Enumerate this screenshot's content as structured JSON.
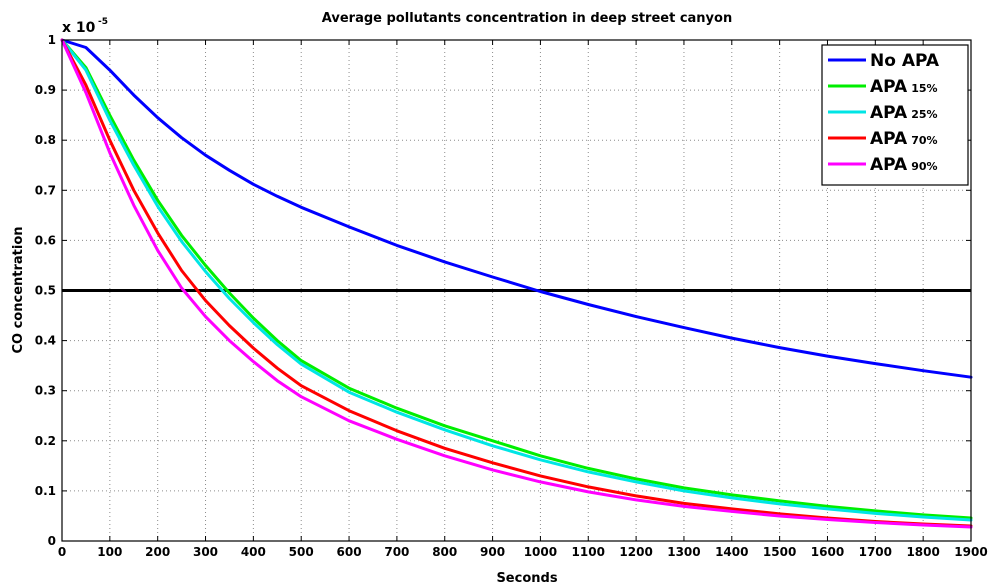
{
  "chart_data": {
    "type": "line",
    "title": "Average pollutants concentration in deep street canyon",
    "xlabel": "Seconds",
    "ylabel": "CO concentration",
    "y_multiplier": "x 10",
    "y_exponent": "-5",
    "xlim": [
      0,
      1900
    ],
    "ylim": [
      0,
      1
    ],
    "xticks": [
      0,
      100,
      200,
      300,
      400,
      500,
      600,
      700,
      800,
      900,
      1000,
      1100,
      1200,
      1300,
      1400,
      1500,
      1600,
      1700,
      1800,
      1900
    ],
    "yticks": [
      0,
      0.1,
      0.2,
      0.3,
      0.4,
      0.5,
      0.6,
      0.7,
      0.8,
      0.9,
      1
    ],
    "ytick_labels": [
      "0",
      "0.1",
      "0.2",
      "0.3",
      "0.4",
      "0.5",
      "0.6",
      "0.7",
      "0.8",
      "0.9",
      "1"
    ],
    "grid": true,
    "legend_position": "top-right",
    "x": [
      0,
      50,
      100,
      150,
      200,
      250,
      300,
      350,
      400,
      450,
      500,
      600,
      700,
      800,
      900,
      1000,
      1100,
      1200,
      1300,
      1400,
      1500,
      1600,
      1700,
      1800,
      1900
    ],
    "series": [
      {
        "name": "No APA",
        "legend_main": "No APA",
        "legend_sub": "",
        "color": "#0000ff",
        "values": [
          1.0,
          0.985,
          0.94,
          0.89,
          0.845,
          0.805,
          0.77,
          0.74,
          0.712,
          0.688,
          0.666,
          0.627,
          0.59,
          0.557,
          0.527,
          0.498,
          0.472,
          0.448,
          0.426,
          0.405,
          0.386,
          0.369,
          0.354,
          0.34,
          0.327
        ]
      },
      {
        "name": "APA 15%",
        "legend_main": "APA",
        "legend_sub": "15%",
        "color": "#00ee00",
        "values": [
          1.0,
          0.945,
          0.85,
          0.76,
          0.68,
          0.61,
          0.55,
          0.495,
          0.445,
          0.4,
          0.36,
          0.305,
          0.265,
          0.23,
          0.2,
          0.17,
          0.145,
          0.124,
          0.106,
          0.092,
          0.08,
          0.069,
          0.06,
          0.052,
          0.046
        ]
      },
      {
        "name": "APA 25%",
        "legend_main": "APA",
        "legend_sub": "25%",
        "color": "#00e5e5",
        "values": [
          1.0,
          0.94,
          0.84,
          0.75,
          0.668,
          0.598,
          0.538,
          0.484,
          0.436,
          0.392,
          0.353,
          0.297,
          0.257,
          0.222,
          0.19,
          0.162,
          0.138,
          0.118,
          0.1,
          0.086,
          0.074,
          0.064,
          0.055,
          0.048,
          0.042
        ]
      },
      {
        "name": "APA 70%",
        "legend_main": "APA",
        "legend_sub": "70%",
        "color": "#ff0000",
        "values": [
          1.0,
          0.91,
          0.8,
          0.7,
          0.615,
          0.54,
          0.48,
          0.43,
          0.385,
          0.345,
          0.31,
          0.26,
          0.22,
          0.185,
          0.156,
          0.13,
          0.108,
          0.09,
          0.075,
          0.064,
          0.054,
          0.046,
          0.039,
          0.034,
          0.03
        ]
      },
      {
        "name": "APA 90%",
        "legend_main": "APA",
        "legend_sub": "90%",
        "color": "#ff00ff",
        "values": [
          1.0,
          0.895,
          0.775,
          0.67,
          0.58,
          0.505,
          0.448,
          0.4,
          0.358,
          0.32,
          0.288,
          0.24,
          0.203,
          0.17,
          0.142,
          0.118,
          0.098,
          0.082,
          0.069,
          0.059,
          0.05,
          0.043,
          0.037,
          0.032,
          0.028
        ]
      }
    ],
    "reference_line": {
      "y": 0.5,
      "color": "#000000"
    }
  }
}
